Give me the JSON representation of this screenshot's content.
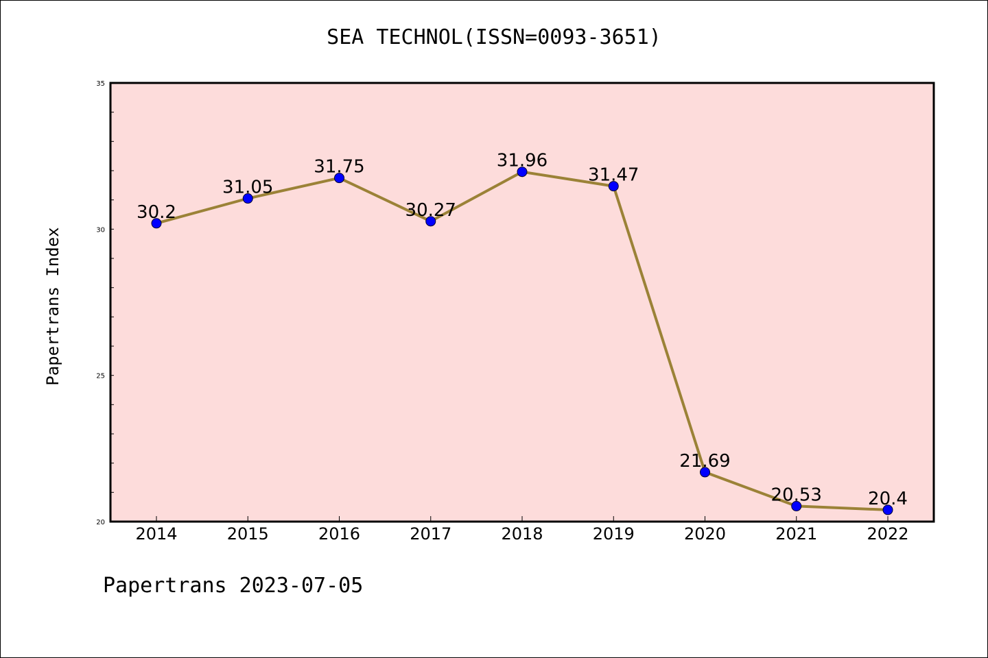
{
  "chart_data": {
    "type": "line",
    "title": "SEA TECHNOL(ISSN=0093-3651)",
    "xlabel": "",
    "ylabel": "Papertrans Index",
    "categories": [
      "2014",
      "2015",
      "2016",
      "2017",
      "2018",
      "2019",
      "2020",
      "2021",
      "2022"
    ],
    "series": [
      {
        "values": [
          30.2,
          31.05,
          31.75,
          30.27,
          31.96,
          31.47,
          21.69,
          20.53,
          20.4
        ]
      }
    ],
    "data_labels": [
      "30.2",
      "31.05",
      "31.75",
      "30.27",
      "31.96",
      "31.47",
      "21.69",
      "20.53",
      "20.4"
    ],
    "ylim": [
      20,
      35
    ],
    "yticks": [
      "20",
      "25",
      "30",
      "35"
    ],
    "grid": false,
    "colors": {
      "plot_background": "#fddcdb",
      "line": "#9b8237",
      "marker": "#0000ff"
    }
  },
  "footer": {
    "text": "Papertrans 2023-07-05"
  }
}
